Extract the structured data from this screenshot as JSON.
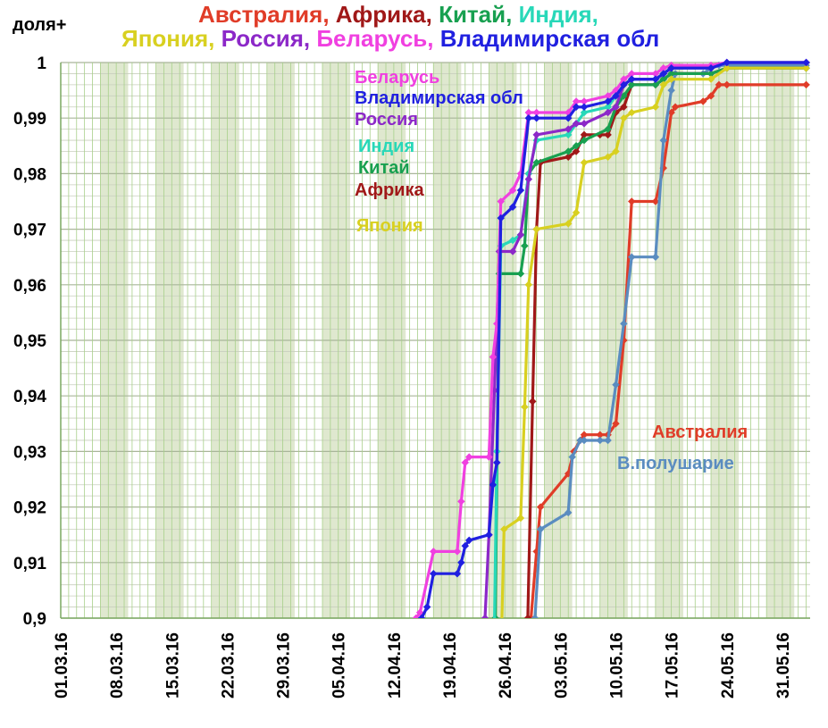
{
  "chart_data": {
    "type": "line",
    "y_axis_label": "доля+",
    "title_parts": [
      [
        {
          "text": "Австралия, ",
          "color": "#e03c28"
        },
        {
          "text": "Африка, ",
          "color": "#a01818"
        },
        {
          "text": "Китай, ",
          "color": "#18a050"
        },
        {
          "text": "Индия,",
          "color": "#28d8b8"
        }
      ],
      [
        {
          "text": "Япония, ",
          "color": "#d8d020"
        },
        {
          "text": "Россия, ",
          "color": "#8c28c8"
        },
        {
          "text": "Беларусь, ",
          "color": "#f040e0"
        },
        {
          "text": "Владимирская обл",
          "color": "#2020e0"
        }
      ]
    ],
    "x_ticks": [
      "01.03.16",
      "08.03.16",
      "15.03.16",
      "22.03.16",
      "29.03.16",
      "05.04.16",
      "12.04.16",
      "19.04.16",
      "26.04.16",
      "03.05.16",
      "10.05.16",
      "17.05.16",
      "24.05.16",
      "31.05.16"
    ],
    "y_ticks": [
      "0,9",
      "0,91",
      "0,92",
      "0,93",
      "0,94",
      "0,95",
      "0,96",
      "0,97",
      "0,98",
      "0,99",
      "1"
    ],
    "x_range_days": [
      0,
      94.5
    ],
    "ylim": [
      0.9,
      1.0
    ],
    "weekend_band_start_days": [
      5,
      12,
      19,
      26,
      33,
      40,
      47,
      54,
      61,
      68,
      75,
      82,
      89
    ],
    "weekend_band_width_days": 3.5,
    "series": [
      {
        "name": "Австралия",
        "color": "#e03c28",
        "points": [
          [
            58.8,
            0.88
          ],
          [
            59.3,
            0.9
          ],
          [
            60,
            0.912
          ],
          [
            60.5,
            0.92
          ],
          [
            64,
            0.926
          ],
          [
            64.7,
            0.93
          ],
          [
            65.5,
            0.932
          ],
          [
            66,
            0.933
          ],
          [
            68,
            0.933
          ],
          [
            69,
            0.933
          ],
          [
            70,
            0.935
          ],
          [
            71,
            0.95
          ],
          [
            72,
            0.975
          ],
          [
            75,
            0.975
          ],
          [
            76,
            0.981
          ],
          [
            77,
            0.991
          ],
          [
            77.5,
            0.992
          ],
          [
            81,
            0.993
          ],
          [
            82,
            0.994
          ],
          [
            83,
            0.996
          ],
          [
            84,
            0.996
          ],
          [
            94,
            0.996
          ]
        ]
      },
      {
        "name": "В.полушарие",
        "color": "#5a8cc0",
        "points": [
          [
            59.3,
            0.88
          ],
          [
            59.8,
            0.9
          ],
          [
            60.5,
            0.916
          ],
          [
            64,
            0.919
          ],
          [
            64.5,
            0.929
          ],
          [
            65.5,
            0.932
          ],
          [
            66,
            0.932
          ],
          [
            68,
            0.932
          ],
          [
            69,
            0.932
          ],
          [
            70,
            0.942
          ],
          [
            71,
            0.953
          ],
          [
            72,
            0.965
          ],
          [
            75,
            0.965
          ],
          [
            76,
            0.986
          ],
          [
            77,
            0.995
          ],
          [
            77.5,
            0.998
          ],
          [
            81,
            0.998
          ],
          [
            82,
            0.999
          ],
          [
            83,
            0.9995
          ],
          [
            94,
            0.9995
          ]
        ]
      },
      {
        "name": "Африка",
        "color": "#a01818",
        "points": [
          [
            58.5,
            0.88
          ],
          [
            58.9,
            0.9
          ],
          [
            59.5,
            0.939
          ],
          [
            60,
            0.97
          ],
          [
            60.5,
            0.982
          ],
          [
            64,
            0.983
          ],
          [
            65,
            0.984
          ],
          [
            66,
            0.987
          ],
          [
            68,
            0.987
          ],
          [
            69,
            0.987
          ],
          [
            70,
            0.991
          ],
          [
            71,
            0.992
          ],
          [
            72,
            0.996
          ],
          [
            75,
            0.996
          ],
          [
            76,
            0.997
          ],
          [
            77,
            0.998
          ],
          [
            82,
            0.998
          ],
          [
            84,
            0.999
          ],
          [
            94,
            0.999
          ]
        ]
      },
      {
        "name": "Китай",
        "color": "#18a050",
        "points": [
          [
            54.3,
            0.88
          ],
          [
            54.8,
            0.9
          ],
          [
            55.3,
            0.962
          ],
          [
            58,
            0.962
          ],
          [
            58.5,
            0.967
          ],
          [
            59,
            0.98
          ],
          [
            60,
            0.982
          ],
          [
            64,
            0.984
          ],
          [
            65,
            0.985
          ],
          [
            66,
            0.986
          ],
          [
            69,
            0.988
          ],
          [
            70,
            0.992
          ],
          [
            71,
            0.994
          ],
          [
            72,
            0.996
          ],
          [
            75,
            0.996
          ],
          [
            76,
            0.997
          ],
          [
            77,
            0.998
          ],
          [
            82,
            0.998
          ],
          [
            84,
            0.999
          ],
          [
            94,
            0.999
          ]
        ]
      },
      {
        "name": "Индия",
        "color": "#28d8b8",
        "points": [
          [
            54.5,
            0.88
          ],
          [
            55,
            0.93
          ],
          [
            55.5,
            0.967
          ],
          [
            57,
            0.968
          ],
          [
            58,
            0.969
          ],
          [
            59,
            0.98
          ],
          [
            60,
            0.986
          ],
          [
            64,
            0.987
          ],
          [
            65,
            0.989
          ],
          [
            66,
            0.991
          ],
          [
            69,
            0.992
          ],
          [
            70,
            0.994
          ],
          [
            71,
            0.996
          ],
          [
            72,
            0.997
          ],
          [
            75,
            0.997
          ],
          [
            76,
            0.998
          ],
          [
            77,
            0.999
          ],
          [
            82,
            0.999
          ],
          [
            84,
            1.0
          ],
          [
            94,
            1.0
          ]
        ]
      },
      {
        "name": "Япония",
        "color": "#d8d020",
        "points": [
          [
            55.3,
            0.88
          ],
          [
            55.9,
            0.916
          ],
          [
            58,
            0.918
          ],
          [
            58.5,
            0.938
          ],
          [
            59,
            0.96
          ],
          [
            60,
            0.97
          ],
          [
            64,
            0.971
          ],
          [
            65,
            0.973
          ],
          [
            66,
            0.982
          ],
          [
            69,
            0.983
          ],
          [
            70,
            0.984
          ],
          [
            71,
            0.99
          ],
          [
            72,
            0.991
          ],
          [
            75,
            0.992
          ],
          [
            76,
            0.996
          ],
          [
            77,
            0.997
          ],
          [
            82,
            0.997
          ],
          [
            84,
            0.999
          ],
          [
            94,
            0.999
          ]
        ]
      },
      {
        "name": "Россия",
        "color": "#8c28c8",
        "points": [
          [
            53,
            0.88
          ],
          [
            53.5,
            0.9
          ],
          [
            54,
            0.915
          ],
          [
            54.7,
            0.941
          ],
          [
            55.3,
            0.966
          ],
          [
            57,
            0.966
          ],
          [
            58,
            0.969
          ],
          [
            59,
            0.979
          ],
          [
            60,
            0.987
          ],
          [
            64,
            0.988
          ],
          [
            65,
            0.989
          ],
          [
            66,
            0.989
          ],
          [
            69,
            0.991
          ],
          [
            70,
            0.992
          ],
          [
            71,
            0.996
          ],
          [
            72,
            0.997
          ],
          [
            75,
            0.997
          ],
          [
            76,
            0.998
          ],
          [
            77,
            0.999
          ],
          [
            82,
            0.999
          ],
          [
            84,
            1.0
          ],
          [
            94,
            1.0
          ]
        ]
      },
      {
        "name": "Беларусь",
        "color": "#f040e0",
        "points": [
          [
            44.8,
            0.9
          ],
          [
            45.3,
            0.901
          ],
          [
            47,
            0.912
          ],
          [
            50,
            0.912
          ],
          [
            50.5,
            0.921
          ],
          [
            51,
            0.928
          ],
          [
            51.5,
            0.929
          ],
          [
            54,
            0.929
          ],
          [
            54.5,
            0.947
          ],
          [
            55,
            0.953
          ],
          [
            55.5,
            0.975
          ],
          [
            57,
            0.977
          ],
          [
            58,
            0.98
          ],
          [
            59,
            0.991
          ],
          [
            60,
            0.991
          ],
          [
            64,
            0.991
          ],
          [
            65,
            0.993
          ],
          [
            66,
            0.993
          ],
          [
            69,
            0.994
          ],
          [
            70,
            0.995
          ],
          [
            71,
            0.997
          ],
          [
            72,
            0.998
          ],
          [
            75,
            0.998
          ],
          [
            76,
            0.999
          ],
          [
            77,
            0.9995
          ],
          [
            82,
            0.9995
          ],
          [
            84,
            1.0
          ],
          [
            94,
            1.0
          ]
        ]
      },
      {
        "name": "Владимирская обл",
        "color": "#2020e0",
        "points": [
          [
            45.5,
            0.9
          ],
          [
            46.2,
            0.902
          ],
          [
            47,
            0.908
          ],
          [
            50,
            0.908
          ],
          [
            50.5,
            0.91
          ],
          [
            51,
            0.913
          ],
          [
            51.5,
            0.914
          ],
          [
            54,
            0.915
          ],
          [
            54.5,
            0.924
          ],
          [
            55,
            0.928
          ],
          [
            55.5,
            0.972
          ],
          [
            57,
            0.974
          ],
          [
            58,
            0.977
          ],
          [
            59,
            0.99
          ],
          [
            60,
            0.99
          ],
          [
            64,
            0.99
          ],
          [
            65,
            0.992
          ],
          [
            66,
            0.992
          ],
          [
            69,
            0.993
          ],
          [
            70,
            0.994
          ],
          [
            71,
            0.996
          ],
          [
            72,
            0.997
          ],
          [
            75,
            0.997
          ],
          [
            76,
            0.998
          ],
          [
            77,
            0.999
          ],
          [
            82,
            0.999
          ],
          [
            84,
            1.0
          ],
          [
            94,
            1.0
          ]
        ]
      }
    ],
    "annotations": [
      {
        "text": "Беларусь",
        "color": "#f040e0"
      },
      {
        "text": "Владимирская обл",
        "color": "#2020e0"
      },
      {
        "text": "Россия",
        "color": "#8c28c8"
      },
      {
        "text": "Индия",
        "color": "#28d8b8"
      },
      {
        "text": "Китай",
        "color": "#18a050"
      },
      {
        "text": "Африка",
        "color": "#a01818"
      },
      {
        "text": "Япония",
        "color": "#d8d020"
      },
      {
        "text": "Австралия",
        "color": "#e03c28"
      },
      {
        "text": "В.полушарие",
        "color": "#5a8cc0"
      }
    ]
  }
}
